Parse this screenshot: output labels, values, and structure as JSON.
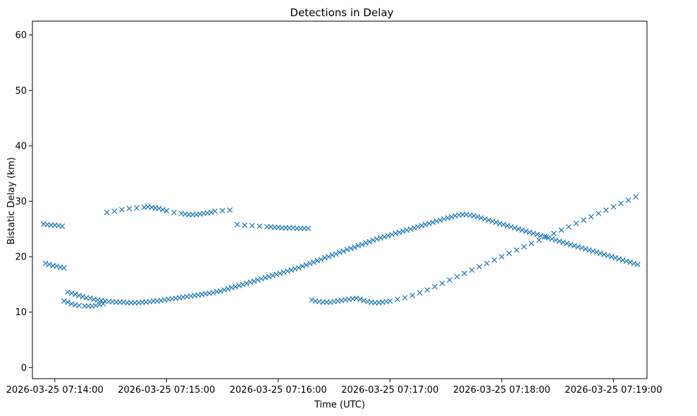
{
  "chart_data": {
    "type": "scatter",
    "title": "Detections in Delay",
    "xlabel": "Time (UTC)",
    "ylabel": "Bistatic Delay (km)",
    "marker": "x",
    "color": "#1f77b4",
    "grid": false,
    "legend": "none",
    "x_unit": "seconds past 2026-03-25 07:13:00 UTC",
    "xlim": [
      48,
      378
    ],
    "ylim": [
      -2,
      62.5
    ],
    "x_ticks": [
      {
        "t": 60,
        "label": "2026-03-25 07:14:00"
      },
      {
        "t": 120,
        "label": "2026-03-25 07:15:00"
      },
      {
        "t": 180,
        "label": "2026-03-25 07:16:00"
      },
      {
        "t": 240,
        "label": "2026-03-25 07:17:00"
      },
      {
        "t": 300,
        "label": "2026-03-25 07:18:00"
      },
      {
        "t": 360,
        "label": "2026-03-25 07:19:00"
      }
    ],
    "y_ticks": [
      0,
      10,
      20,
      30,
      40,
      50,
      60
    ],
    "series": [
      {
        "name": "",
        "description": "main target track (dense curve)",
        "x": [
          55,
          57,
          59,
          61,
          63,
          65,
          67,
          69,
          71,
          73,
          75,
          77,
          79,
          81,
          83,
          85,
          87,
          89,
          91,
          93,
          95,
          97,
          99,
          101,
          103,
          105,
          107,
          109,
          111,
          113,
          115,
          117,
          119,
          121,
          123,
          125,
          127,
          129,
          131,
          133,
          135,
          137,
          139,
          141,
          143,
          145,
          147,
          149,
          151,
          153,
          155,
          157,
          159,
          161,
          163,
          165,
          167,
          169,
          171,
          173,
          175,
          177,
          179,
          181,
          183,
          185,
          187,
          189,
          191,
          193,
          195,
          197,
          199,
          201,
          203,
          205,
          207,
          209,
          211,
          213,
          215,
          217,
          219,
          221,
          223,
          225,
          227,
          229,
          231,
          233,
          235,
          237,
          239,
          241,
          243,
          245,
          247,
          249,
          251,
          253,
          255,
          257,
          259,
          261,
          263,
          265,
          267,
          269,
          271,
          273,
          275,
          277,
          279,
          281,
          283,
          285,
          287,
          289,
          291,
          293,
          295,
          297,
          299,
          301,
          303,
          305,
          307,
          309,
          311,
          313,
          315,
          317,
          319,
          321,
          323,
          325,
          327,
          329,
          331,
          333,
          335,
          337,
          339,
          341,
          343,
          345,
          347,
          349,
          351,
          353,
          355,
          357,
          359,
          361,
          363,
          365,
          367,
          369,
          371,
          373
        ],
        "y": [
          18.8,
          18.6,
          18.4,
          18.3,
          18.1,
          18.0,
          13.6,
          13.4,
          13.2,
          13.0,
          12.8,
          12.6,
          12.5,
          12.3,
          12.2,
          12.1,
          12.0,
          11.9,
          11.9,
          11.8,
          11.8,
          11.8,
          11.7,
          11.7,
          11.7,
          11.7,
          11.8,
          11.8,
          11.9,
          12.0,
          12.0,
          12.1,
          12.2,
          12.3,
          12.4,
          12.5,
          12.6,
          12.7,
          12.8,
          12.9,
          13.0,
          13.1,
          13.2,
          13.3,
          13.4,
          13.5,
          13.7,
          13.8,
          14.0,
          14.2,
          14.4,
          14.6,
          14.8,
          15.0,
          15.2,
          15.4,
          15.6,
          15.8,
          16.0,
          16.2,
          16.4,
          16.6,
          16.8,
          17.0,
          17.2,
          17.4,
          17.6,
          17.8,
          18.0,
          18.3,
          18.5,
          18.8,
          19.0,
          19.3,
          19.5,
          19.8,
          20.0,
          20.3,
          20.5,
          20.8,
          21.0,
          21.3,
          21.5,
          21.7,
          22.0,
          22.2,
          22.5,
          22.7,
          23.0,
          23.2,
          23.4,
          23.6,
          23.8,
          24.0,
          24.2,
          24.4,
          24.6,
          24.8,
          25.0,
          25.2,
          25.4,
          25.6,
          25.8,
          26.0,
          26.2,
          26.4,
          26.6,
          26.8,
          27.0,
          27.2,
          27.4,
          27.5,
          27.6,
          27.6,
          27.5,
          27.4,
          27.2,
          27.0,
          26.8,
          26.6,
          26.4,
          26.2,
          26.0,
          25.8,
          25.6,
          25.4,
          25.2,
          25.0,
          24.8,
          24.6,
          24.4,
          24.2,
          24.0,
          23.8,
          23.6,
          23.4,
          23.2,
          23.0,
          22.8,
          22.6,
          22.4,
          22.2,
          22.0,
          21.8,
          21.6,
          21.4,
          21.2,
          21.0,
          20.8,
          20.6,
          20.4,
          20.2,
          20.0,
          19.8,
          19.6,
          19.4,
          19.2,
          19.0,
          18.8,
          18.6
        ]
      },
      {
        "name": "",
        "description": "secondary tracks and clutter",
        "x": [
          54,
          56,
          58,
          60,
          62,
          64,
          65,
          67,
          69,
          71,
          73,
          76,
          78,
          80,
          82,
          84,
          86,
          88,
          92,
          96,
          100,
          104,
          108,
          110,
          112,
          114,
          116,
          118,
          120,
          124,
          128,
          130,
          132,
          134,
          136,
          138,
          140,
          142,
          144,
          146,
          150,
          154,
          158,
          162,
          166,
          170,
          174,
          176,
          178,
          180,
          182,
          184,
          186,
          188,
          190,
          192,
          194,
          196,
          198,
          200,
          202,
          204,
          206,
          208,
          210,
          212,
          214,
          216,
          218,
          220,
          222,
          224,
          226,
          228,
          230,
          232,
          234,
          236,
          238,
          240,
          244,
          248,
          252,
          256,
          260,
          264,
          268,
          272,
          276,
          280,
          284,
          288,
          292,
          296,
          300,
          304,
          308,
          312,
          316,
          320,
          324,
          328,
          332,
          336,
          340,
          344,
          348,
          352,
          356,
          360,
          364,
          368,
          372
        ],
        "y": [
          25.9,
          25.8,
          25.7,
          25.7,
          25.6,
          25.5,
          12.0,
          11.8,
          11.5,
          11.3,
          11.2,
          11.1,
          11.1,
          11.1,
          11.2,
          11.4,
          11.5,
          28.0,
          28.2,
          28.5,
          28.7,
          28.8,
          28.9,
          29.0,
          28.9,
          28.8,
          28.7,
          28.5,
          28.3,
          28.0,
          27.8,
          27.7,
          27.6,
          27.6,
          27.6,
          27.7,
          27.8,
          27.9,
          28.0,
          28.2,
          28.3,
          28.4,
          25.8,
          25.7,
          25.6,
          25.5,
          25.4,
          25.4,
          25.3,
          25.3,
          25.2,
          25.2,
          25.2,
          25.2,
          25.1,
          25.1,
          25.1,
          25.1,
          12.2,
          12.0,
          11.9,
          11.8,
          11.8,
          11.8,
          11.9,
          12.0,
          12.1,
          12.2,
          12.3,
          12.4,
          12.5,
          12.3,
          12.1,
          11.9,
          11.8,
          11.7,
          11.7,
          11.8,
          11.9,
          12.0,
          12.3,
          12.6,
          13.0,
          13.5,
          14.0,
          14.6,
          15.2,
          15.8,
          16.4,
          17.0,
          17.6,
          18.2,
          18.8,
          19.4,
          20.0,
          20.6,
          21.2,
          21.8,
          22.4,
          23.0,
          23.6,
          24.2,
          24.8,
          25.4,
          26.0,
          26.6,
          27.2,
          27.8,
          28.4,
          29.0,
          29.6,
          30.2,
          30.8
        ]
      }
    ]
  }
}
